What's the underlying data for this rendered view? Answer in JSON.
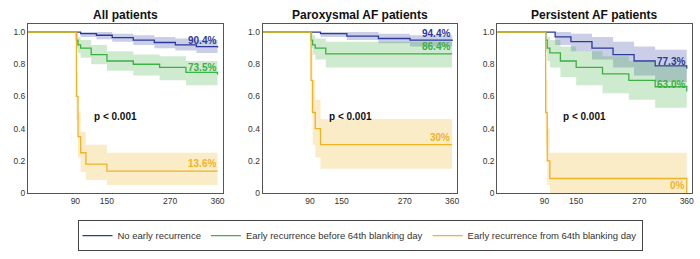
{
  "chart_data": [
    {
      "type": "line",
      "title": "All patients",
      "legend": "bottom",
      "xlim": [
        0,
        370
      ],
      "xticks": [
        90,
        150,
        270,
        360
      ],
      "ylim": [
        0,
        1.05
      ],
      "yticks": [
        0,
        0.2,
        0.4,
        0.6,
        0.8,
        {
          "value": 1,
          "label": "1.0"
        }
      ],
      "grid": false,
      "line_style": "step",
      "annotations": [
        {
          "text": "p < 0.001"
        }
      ],
      "series": [
        {
          "name": "No early recurrence",
          "color": "#2b3a9a",
          "end_label": "90.4%",
          "x": [
            0,
            100,
            130,
            160,
            200,
            240,
            280,
            320,
            360
          ],
          "values": [
            1,
            0.99,
            0.98,
            0.965,
            0.95,
            0.935,
            0.92,
            0.91,
            0.904
          ],
          "lower": [
            1,
            0.97,
            0.955,
            0.94,
            0.92,
            0.9,
            0.885,
            0.87,
            0.86
          ],
          "upper": [
            1,
            1,
            1,
            0.99,
            0.98,
            0.97,
            0.96,
            0.95,
            0.945
          ]
        },
        {
          "name": "Early recurrence before 64th blanking day",
          "color": "#3cb043",
          "end_label": "73.5%",
          "x": [
            0,
            90,
            92,
            95,
            100,
            120,
            150,
            200,
            250,
            300,
            360
          ],
          "values": [
            1,
            1,
            0.95,
            0.92,
            0.9,
            0.86,
            0.82,
            0.8,
            0.78,
            0.75,
            0.735
          ],
          "lower": [
            1,
            1,
            0.9,
            0.87,
            0.84,
            0.8,
            0.76,
            0.73,
            0.7,
            0.67,
            0.65
          ],
          "upper": [
            1,
            1,
            0.99,
            0.97,
            0.95,
            0.92,
            0.88,
            0.86,
            0.85,
            0.82,
            0.81
          ]
        },
        {
          "name": "Early recurrence from 64th blanking day",
          "color": "#f0b323",
          "end_label": "13.6%",
          "x": [
            0,
            90,
            92,
            95,
            100,
            110,
            150,
            360
          ],
          "values": [
            1,
            1,
            0.6,
            0.35,
            0.25,
            0.18,
            0.136,
            0.136
          ],
          "lower": [
            1,
            1,
            0.45,
            0.22,
            0.13,
            0.08,
            0.05,
            0.05
          ],
          "upper": [
            1,
            1,
            0.75,
            0.5,
            0.38,
            0.3,
            0.25,
            0.25
          ]
        }
      ]
    },
    {
      "type": "line",
      "title": "Paroxysmal AF patients",
      "xlim": [
        0,
        370
      ],
      "xticks": [
        90,
        150,
        270,
        360
      ],
      "ylim": [
        0,
        1.05
      ],
      "yticks": [
        0,
        0.2,
        0.4,
        0.6,
        0.8,
        {
          "value": 1,
          "label": "1.0"
        }
      ],
      "grid": false,
      "line_style": "step",
      "annotations": [
        {
          "text": "p < 0.001"
        }
      ],
      "series": [
        {
          "name": "No early recurrence",
          "color": "#2b3a9a",
          "end_label": "94.4%",
          "x": [
            0,
            110,
            160,
            220,
            280,
            360
          ],
          "values": [
            1,
            0.99,
            0.975,
            0.96,
            0.95,
            0.944
          ],
          "lower": [
            1,
            0.97,
            0.95,
            0.93,
            0.91,
            0.9
          ],
          "upper": [
            1,
            1,
            1,
            0.99,
            0.98,
            0.975
          ]
        },
        {
          "name": "Early recurrence before 64th blanking day",
          "color": "#3cb043",
          "end_label": "86.4%",
          "x": [
            0,
            90,
            92,
            95,
            100,
            120,
            360
          ],
          "values": [
            1,
            1,
            0.95,
            0.92,
            0.9,
            0.864,
            0.864
          ],
          "lower": [
            1,
            1,
            0.9,
            0.86,
            0.83,
            0.78,
            0.78
          ],
          "upper": [
            1,
            1,
            1,
            0.98,
            0.96,
            0.94,
            0.94
          ]
        },
        {
          "name": "Early recurrence from 64th blanking day",
          "color": "#f0b323",
          "end_label": "30%",
          "x": [
            0,
            90,
            92,
            95,
            100,
            110,
            360
          ],
          "values": [
            1,
            1,
            0.7,
            0.5,
            0.4,
            0.3,
            0.3
          ],
          "lower": [
            1,
            1,
            0.5,
            0.3,
            0.22,
            0.15,
            0.15
          ],
          "upper": [
            1,
            1,
            0.88,
            0.7,
            0.58,
            0.46,
            0.46
          ]
        }
      ]
    },
    {
      "type": "line",
      "title": "Persistent AF patients",
      "xlim": [
        0,
        370
      ],
      "xticks": [
        90,
        150,
        270,
        360
      ],
      "ylim": [
        0,
        1.05
      ],
      "yticks": [
        0,
        0.2,
        0.4,
        0.6,
        0.8,
        {
          "value": 1,
          "label": "1.0"
        }
      ],
      "grid": false,
      "line_style": "step",
      "annotations": [
        {
          "text": "p < 0.001"
        }
      ],
      "series": [
        {
          "name": "No early recurrence",
          "color": "#2b3a9a",
          "end_label": "77.3%",
          "x": [
            0,
            110,
            140,
            180,
            220,
            260,
            300,
            360
          ],
          "values": [
            1,
            0.97,
            0.94,
            0.9,
            0.86,
            0.82,
            0.79,
            0.773
          ],
          "lower": [
            1,
            0.92,
            0.88,
            0.83,
            0.78,
            0.73,
            0.69,
            0.66
          ],
          "upper": [
            1,
            1,
            0.99,
            0.97,
            0.94,
            0.91,
            0.89,
            0.88
          ]
        },
        {
          "name": "Early recurrence before 64th blanking day",
          "color": "#3cb043",
          "end_label": "63.0%",
          "x": [
            0,
            90,
            92,
            95,
            100,
            120,
            150,
            200,
            250,
            300,
            360
          ],
          "values": [
            1,
            1,
            0.95,
            0.9,
            0.87,
            0.82,
            0.78,
            0.74,
            0.7,
            0.66,
            0.63
          ],
          "lower": [
            1,
            1,
            0.88,
            0.82,
            0.78,
            0.72,
            0.67,
            0.62,
            0.58,
            0.53,
            0.5
          ],
          "upper": [
            1,
            1,
            1,
            0.97,
            0.95,
            0.91,
            0.88,
            0.85,
            0.82,
            0.79,
            0.76
          ]
        },
        {
          "name": "Early recurrence from 64th blanking day",
          "color": "#f0b323",
          "end_label": "0%",
          "x": [
            0,
            90,
            92,
            95,
            100,
            355,
            360
          ],
          "values": [
            1,
            1,
            0.5,
            0.2,
            0.09,
            0.09,
            0
          ],
          "lower": [
            1,
            1,
            0.3,
            0.05,
            0,
            0,
            0
          ],
          "upper": [
            1,
            1,
            0.7,
            0.4,
            0.25,
            0.25,
            0
          ]
        }
      ]
    }
  ]
}
